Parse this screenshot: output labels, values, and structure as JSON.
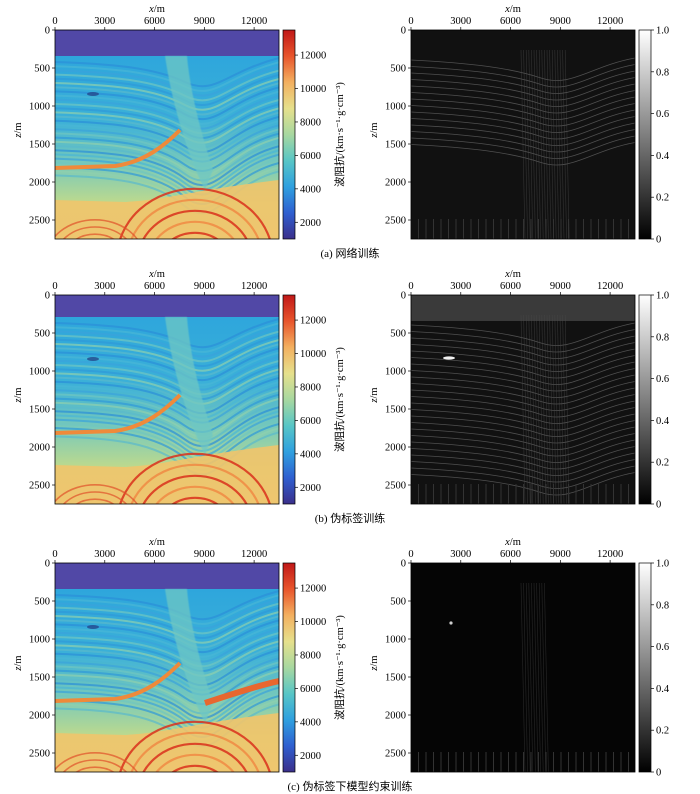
{
  "rows": [
    {
      "caption": "(a) 网络训练",
      "left": {
        "xlabel_var": "x",
        "xlabel_unit": "/m",
        "ylabel_var": "z",
        "ylabel_unit": "/m",
        "xticks": [
          0,
          3000,
          6000,
          9000,
          12000
        ],
        "yticks": [
          0,
          500,
          1000,
          1500,
          2000,
          2500
        ],
        "colorbar": {
          "ticks": [
            2000,
            4000,
            6000,
            8000,
            10000,
            12000
          ],
          "label": "波阻抗/(km·s⁻¹·g·cm⁻³)"
        }
      },
      "right": {
        "xlabel_var": "x",
        "xlabel_unit": "/m",
        "ylabel_var": "z",
        "ylabel_unit": "/m",
        "xticks": [
          0,
          3000,
          6000,
          9000,
          12000
        ],
        "yticks": [
          0,
          500,
          1000,
          1500,
          2000,
          2500
        ],
        "colorbar": {
          "ticks": [
            0,
            0.2,
            0.4,
            0.6,
            0.8,
            1.0
          ],
          "labels": [
            "0",
            "0.2",
            "0.4",
            "0.6",
            "0.8",
            "1.0"
          ]
        }
      }
    },
    {
      "caption": "(b) 伪标签训练",
      "left": {
        "xlabel_var": "x",
        "xlabel_unit": "/m",
        "ylabel_var": "z",
        "ylabel_unit": "/m",
        "xticks": [
          0,
          3000,
          6000,
          9000,
          12000
        ],
        "yticks": [
          0,
          500,
          1000,
          1500,
          2000,
          2500
        ],
        "colorbar": {
          "ticks": [
            2000,
            4000,
            6000,
            8000,
            10000,
            12000
          ],
          "label": "波阻抗/(km·s⁻¹·g·cm⁻³)"
        }
      },
      "right": {
        "xlabel_var": "x",
        "xlabel_unit": "/m",
        "ylabel_var": "z",
        "ylabel_unit": "/m",
        "xticks": [
          0,
          3000,
          6000,
          9000,
          12000
        ],
        "yticks": [
          0,
          500,
          1000,
          1500,
          2000,
          2500
        ],
        "colorbar": {
          "ticks": [
            0,
            0.2,
            0.4,
            0.6,
            0.8,
            1.0
          ],
          "labels": [
            "0",
            "0.2",
            "0.4",
            "0.6",
            "0.8",
            "1.0"
          ]
        }
      }
    },
    {
      "caption": "(c) 伪标签下模型约束训练",
      "left": {
        "xlabel_var": "x",
        "xlabel_unit": "/m",
        "ylabel_var": "z",
        "ylabel_unit": "/m",
        "xticks": [
          0,
          3000,
          6000,
          9000,
          12000
        ],
        "yticks": [
          0,
          500,
          1000,
          1500,
          2000,
          2500
        ],
        "colorbar": {
          "ticks": [
            2000,
            4000,
            6000,
            8000,
            10000,
            12000
          ],
          "label": "波阻抗/(km·s⁻¹·g·cm⁻³)"
        }
      },
      "right": {
        "xlabel_var": "x",
        "xlabel_unit": "/m",
        "ylabel_var": "z",
        "ylabel_unit": "/m",
        "xticks": [
          0,
          3000,
          6000,
          9000,
          12000
        ],
        "yticks": [
          0,
          500,
          1000,
          1500,
          2000,
          2500
        ],
        "colorbar": {
          "ticks": [
            0,
            0.2,
            0.4,
            0.6,
            0.8,
            1.0
          ],
          "labels": [
            "0",
            "0.2",
            "0.4",
            "0.6",
            "0.8",
            "1.0"
          ]
        }
      }
    }
  ],
  "colormaps": {
    "impedance": [
      "#3b2f8a",
      "#2f5fd0",
      "#2fa0df",
      "#58c6c6",
      "#a8d8a0",
      "#e6e08c",
      "#f3b060",
      "#e8552c",
      "#c01818"
    ],
    "error": [
      "#000000",
      "#ffffff"
    ]
  }
}
